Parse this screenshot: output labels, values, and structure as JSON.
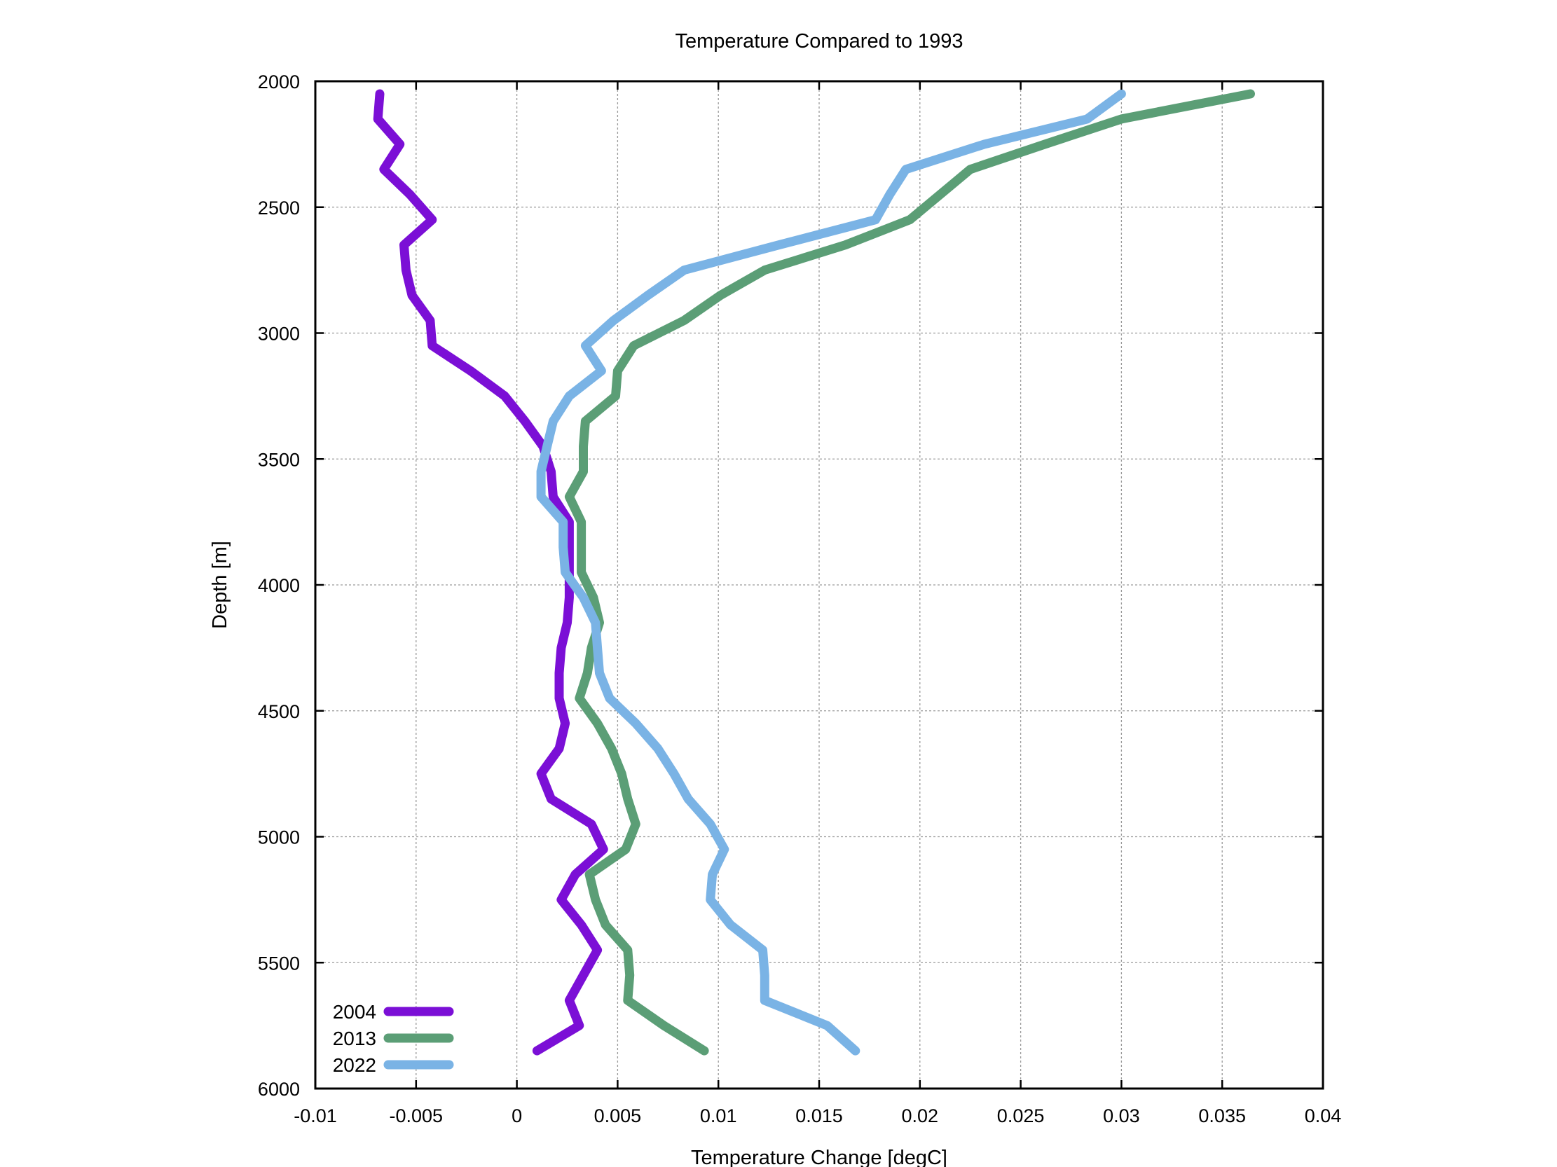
{
  "chart_data": {
    "type": "line",
    "title": "Temperature Compared to 1993",
    "xlabel": "Temperature Change [degC]",
    "ylabel": "Depth [m]",
    "xlim": [
      -0.01,
      0.04
    ],
    "ylim": [
      2000,
      6000
    ],
    "y_inverted": true,
    "grid": true,
    "legend_position": "bottom-left",
    "x_ticks": [
      "-0.01",
      "-0.005",
      "0",
      "0.005",
      "0.01",
      "0.015",
      "0.02",
      "0.025",
      "0.03",
      "0.035",
      "0.04"
    ],
    "y_ticks": [
      "2000",
      "2500",
      "3000",
      "3500",
      "4000",
      "4500",
      "5000",
      "5500",
      "6000"
    ],
    "depths": [
      2050,
      2150,
      2250,
      2350,
      2450,
      2550,
      2650,
      2750,
      2850,
      2950,
      3050,
      3150,
      3250,
      3350,
      3450,
      3550,
      3650,
      3750,
      3850,
      3950,
      4050,
      4150,
      4250,
      4350,
      4450,
      4550,
      4650,
      4750,
      4850,
      4950,
      5050,
      5150,
      5250,
      5350,
      5450,
      5550,
      5650,
      5750,
      5850
    ],
    "series": [
      {
        "name": "2004",
        "color": "#7b0fd6",
        "values": [
          -0.0068,
          -0.0069,
          -0.0058,
          -0.0066,
          -0.0053,
          -0.0042,
          -0.0056,
          -0.0055,
          -0.0052,
          -0.0043,
          -0.0042,
          -0.0023,
          -0.0006,
          0.0004,
          0.0013,
          0.0017,
          0.0018,
          0.0026,
          0.0026,
          0.0026,
          0.0026,
          0.0025,
          0.0022,
          0.0021,
          0.0021,
          0.0024,
          0.0021,
          0.0012,
          0.0017,
          0.0037,
          0.0043,
          0.0029,
          0.0022,
          0.0032,
          0.004,
          0.0033,
          0.0026,
          0.0031,
          0.001
        ]
      },
      {
        "name": "2013",
        "color": "#5b9e76",
        "values": [
          0.0364,
          0.03,
          0.0262,
          0.0225,
          0.021,
          0.0195,
          0.0163,
          0.0123,
          0.0101,
          0.0083,
          0.0058,
          0.005,
          0.0049,
          0.0034,
          0.0033,
          0.0033,
          0.0026,
          0.0032,
          0.0032,
          0.0032,
          0.0038,
          0.0041,
          0.0037,
          0.0035,
          0.0031,
          0.004,
          0.0047,
          0.0052,
          0.0055,
          0.0059,
          0.0054,
          0.0036,
          0.0039,
          0.0044,
          0.0055,
          0.0056,
          0.0055,
          0.0073,
          0.0093
        ]
      },
      {
        "name": "2022",
        "color": "#7ab3e5",
        "values": [
          0.03,
          0.0283,
          0.0232,
          0.0193,
          0.0185,
          0.0178,
          0.013,
          0.0083,
          0.0065,
          0.0048,
          0.0034,
          0.0042,
          0.0026,
          0.0018,
          0.0015,
          0.0012,
          0.0012,
          0.0023,
          0.0023,
          0.0024,
          0.0033,
          0.0039,
          0.004,
          0.0041,
          0.0046,
          0.0059,
          0.007,
          0.0078,
          0.0085,
          0.0096,
          0.0103,
          0.0097,
          0.0096,
          0.0106,
          0.0122,
          0.0123,
          0.0123,
          0.0154,
          0.0168
        ]
      }
    ]
  }
}
